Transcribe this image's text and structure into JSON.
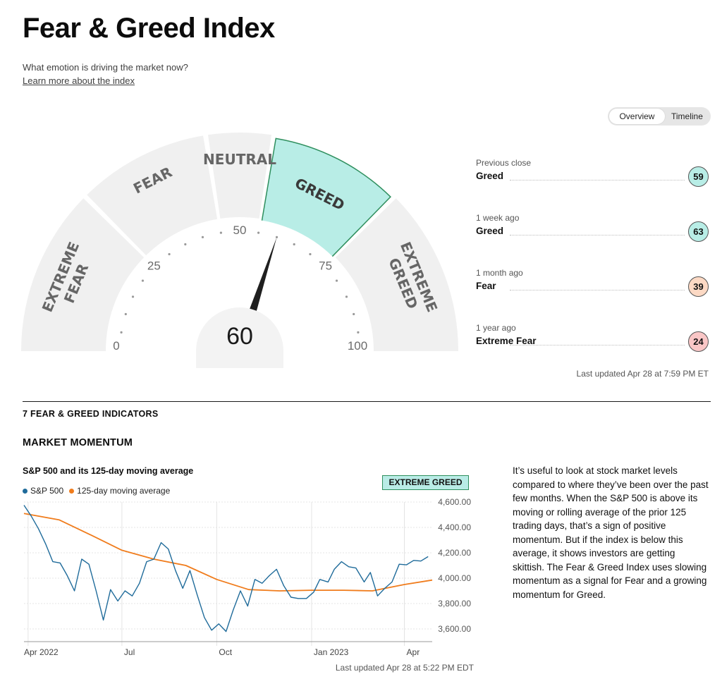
{
  "page": {
    "title": "Fear & Greed Index",
    "subtitle": "What emotion is driving the market now?",
    "learn_link": "Learn more about the index"
  },
  "view_toggle": {
    "options": [
      "Overview",
      "Timeline"
    ],
    "selected": "Overview"
  },
  "gauge": {
    "value": 60,
    "value_label": "60",
    "min": 0,
    "max": 100,
    "active_segment": "GREED",
    "tick_labels": [
      "0",
      "25",
      "50",
      "75",
      "100"
    ],
    "segments": [
      {
        "name": "EXTREME FEAR",
        "lines": [
          "EXTREME",
          "FEAR"
        ],
        "range": [
          0,
          25
        ]
      },
      {
        "name": "FEAR",
        "lines": [
          "FEAR"
        ],
        "range": [
          25,
          45
        ]
      },
      {
        "name": "NEUTRAL",
        "lines": [
          "NEUTRAL"
        ],
        "range": [
          45,
          55
        ]
      },
      {
        "name": "GREED",
        "lines": [
          "GREED"
        ],
        "range": [
          55,
          75
        ]
      },
      {
        "name": "EXTREME GREED",
        "lines": [
          "EXTREME",
          "GREED"
        ],
        "range": [
          75,
          100
        ]
      }
    ],
    "colors": {
      "inactive": "#f0f0f0",
      "active": "#b8ede6",
      "active_border": "#2f8f5e",
      "needle": "#1f1f1f"
    }
  },
  "history": [
    {
      "when": "Previous close",
      "label": "Greed",
      "value": "59",
      "color": "#b8ede6"
    },
    {
      "when": "1 week ago",
      "label": "Greed",
      "value": "63",
      "color": "#b8ede6"
    },
    {
      "when": "1 month ago",
      "label": "Fear",
      "value": "39",
      "color": "#fcd9c4"
    },
    {
      "when": "1 year ago",
      "label": "Extreme Fear",
      "value": "24",
      "color": "#f9c6c6"
    }
  ],
  "last_updated_top": "Last updated Apr 28 at 7:59 PM ET",
  "indicators": {
    "section_title": "7 FEAR & GREED INDICATORS",
    "market_momentum": {
      "title": "MARKET MOMENTUM",
      "chart_title": "S&P 500 and its 125-day moving average",
      "rating": "EXTREME GREED",
      "last_updated": "Last updated Apr 28 at 5:22 PM EDT",
      "description": "It’s useful to look at stock market levels compared to where they’ve been over the past few months. When the S&P 500 is above its moving or rolling average of the prior 125 trading days, that’s a sign of positive momentum. But if the index is below this average, it shows investors are getting skittish. The Fear & Greed Index uses slowing momentum as a signal for Fear and a growing momentum for Greed."
    }
  },
  "chart_data": {
    "type": "line",
    "x_tick_labels": [
      "Apr 2022",
      "Jul",
      "Oct",
      "Jan 2023",
      "Apr"
    ],
    "x_tick_dates": [
      "2022-04-01",
      "2022-07-01",
      "2022-10-01",
      "2023-01-01",
      "2023-04-01"
    ],
    "x_range": [
      "2022-03-28",
      "2023-04-28"
    ],
    "y_tick_labels": [
      "3,600.00",
      "3,800.00",
      "4,000.00",
      "4,200.00",
      "4,400.00",
      "4,600.00"
    ],
    "y_ticks": [
      3600,
      3800,
      4000,
      4200,
      4400,
      4600
    ],
    "ylim": [
      3500,
      4600
    ],
    "grid": true,
    "legend_position": "top-left",
    "series": [
      {
        "name": "S&P 500",
        "color": "#1f6b9a",
        "points": [
          [
            "2022-03-28",
            4575
          ],
          [
            "2022-04-04",
            4490
          ],
          [
            "2022-04-11",
            4390
          ],
          [
            "2022-04-18",
            4270
          ],
          [
            "2022-04-25",
            4130
          ],
          [
            "2022-05-02",
            4120
          ],
          [
            "2022-05-09",
            4020
          ],
          [
            "2022-05-16",
            3900
          ],
          [
            "2022-05-23",
            4150
          ],
          [
            "2022-05-30",
            4110
          ],
          [
            "2022-06-06",
            3900
          ],
          [
            "2022-06-13",
            3670
          ],
          [
            "2022-06-20",
            3910
          ],
          [
            "2022-06-27",
            3820
          ],
          [
            "2022-07-04",
            3900
          ],
          [
            "2022-07-11",
            3860
          ],
          [
            "2022-07-18",
            3960
          ],
          [
            "2022-07-25",
            4130
          ],
          [
            "2022-08-01",
            4150
          ],
          [
            "2022-08-08",
            4280
          ],
          [
            "2022-08-15",
            4230
          ],
          [
            "2022-08-22",
            4060
          ],
          [
            "2022-08-29",
            3920
          ],
          [
            "2022-09-05",
            4060
          ],
          [
            "2022-09-12",
            3870
          ],
          [
            "2022-09-19",
            3690
          ],
          [
            "2022-09-26",
            3590
          ],
          [
            "2022-10-03",
            3640
          ],
          [
            "2022-10-10",
            3580
          ],
          [
            "2022-10-17",
            3750
          ],
          [
            "2022-10-24",
            3900
          ],
          [
            "2022-10-31",
            3780
          ],
          [
            "2022-11-07",
            3990
          ],
          [
            "2022-11-14",
            3960
          ],
          [
            "2022-11-21",
            4020
          ],
          [
            "2022-11-28",
            4070
          ],
          [
            "2022-12-05",
            3940
          ],
          [
            "2022-12-12",
            3850
          ],
          [
            "2022-12-19",
            3840
          ],
          [
            "2022-12-27",
            3840
          ],
          [
            "2023-01-03",
            3890
          ],
          [
            "2023-01-09",
            3990
          ],
          [
            "2023-01-17",
            3970
          ],
          [
            "2023-01-23",
            4070
          ],
          [
            "2023-01-30",
            4130
          ],
          [
            "2023-02-06",
            4090
          ],
          [
            "2023-02-13",
            4080
          ],
          [
            "2023-02-21",
            3970
          ],
          [
            "2023-02-27",
            4045
          ],
          [
            "2023-03-06",
            3860
          ],
          [
            "2023-03-13",
            3920
          ],
          [
            "2023-03-20",
            3970
          ],
          [
            "2023-03-27",
            4110
          ],
          [
            "2023-04-03",
            4105
          ],
          [
            "2023-04-10",
            4140
          ],
          [
            "2023-04-17",
            4135
          ],
          [
            "2023-04-24",
            4170
          ]
        ]
      },
      {
        "name": "125-day moving average",
        "color": "#f07c1c",
        "points": [
          [
            "2022-03-28",
            4510
          ],
          [
            "2022-05-01",
            4460
          ],
          [
            "2022-06-01",
            4340
          ],
          [
            "2022-07-01",
            4220
          ],
          [
            "2022-08-01",
            4150
          ],
          [
            "2022-09-01",
            4100
          ],
          [
            "2022-10-01",
            3990
          ],
          [
            "2022-11-01",
            3910
          ],
          [
            "2022-12-01",
            3900
          ],
          [
            "2023-01-01",
            3905
          ],
          [
            "2023-02-01",
            3905
          ],
          [
            "2023-03-01",
            3900
          ],
          [
            "2023-04-01",
            3950
          ],
          [
            "2023-04-28",
            3985
          ]
        ]
      }
    ]
  }
}
